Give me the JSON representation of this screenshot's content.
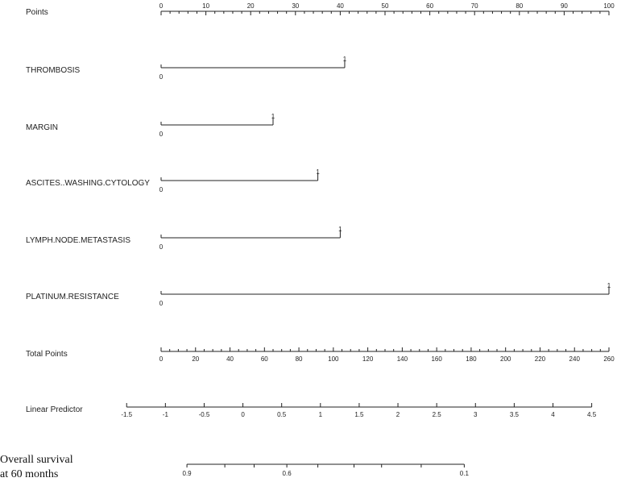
{
  "chart_data": {
    "type": "nomogram",
    "rows": [
      {
        "key": "points",
        "label": "Points",
        "kind": "axis",
        "ticks": [
          "0",
          "10",
          "20",
          "30",
          "40",
          "50",
          "60",
          "70",
          "80",
          "90",
          "100"
        ],
        "range": [
          0,
          100
        ],
        "minor_step": 2
      },
      {
        "key": "thrombosis",
        "label": "THROMBOSIS",
        "kind": "variable",
        "levels": [
          {
            "text": "0",
            "points": 0
          },
          {
            "text": "1",
            "points": 41
          }
        ]
      },
      {
        "key": "margin",
        "label": "MARGIN",
        "kind": "variable",
        "levels": [
          {
            "text": "0",
            "points": 0
          },
          {
            "text": "1",
            "points": 25
          }
        ]
      },
      {
        "key": "ascites",
        "label": "ASCITES..WASHING.CYTOLOGY",
        "kind": "variable",
        "levels": [
          {
            "text": "0",
            "points": 0
          },
          {
            "text": "1",
            "points": 35
          }
        ]
      },
      {
        "key": "lymph",
        "label": "LYMPH.NODE.METASTASIS",
        "kind": "variable",
        "levels": [
          {
            "text": "0",
            "points": 0
          },
          {
            "text": "1",
            "points": 40
          }
        ]
      },
      {
        "key": "platinum",
        "label": "PLATINUM.RESISTANCE",
        "kind": "variable",
        "levels": [
          {
            "text": "0",
            "points": 0
          },
          {
            "text": "1",
            "points": 100
          }
        ]
      },
      {
        "key": "total",
        "label": "Total Points",
        "kind": "axis",
        "ticks": [
          "0",
          "20",
          "40",
          "60",
          "80",
          "100",
          "120",
          "140",
          "160",
          "180",
          "200",
          "220",
          "240",
          "260"
        ],
        "range": [
          0,
          260
        ],
        "minor_step": 5
      },
      {
        "key": "lp",
        "label": "Linear Predictor",
        "kind": "axis",
        "ticks": [
          "-1.5",
          "-1",
          "-0.5",
          "0",
          "0.5",
          "1",
          "1.5",
          "2",
          "2.5",
          "3",
          "3.5",
          "4",
          "4.5"
        ],
        "range": [
          -1.5,
          4.5
        ],
        "minor_step": 0.5,
        "total_points_range": [
          -20,
          250
        ]
      },
      {
        "key": "survival",
        "label": [
          "Overall  survival",
          "at 60 months"
        ],
        "kind": "prob",
        "tick_values": [
          0.9,
          0.8,
          0.7,
          0.6,
          0.5,
          0.4,
          0.3,
          0.2,
          0.1
        ],
        "tick_labels": {
          "0.9": "0.9",
          "0.6": "0.6",
          "0.1": "0.1"
        },
        "total_points_at_tick": [
          15,
          37,
          54,
          73,
          91,
          112,
          128,
          151,
          176
        ]
      }
    ]
  }
}
